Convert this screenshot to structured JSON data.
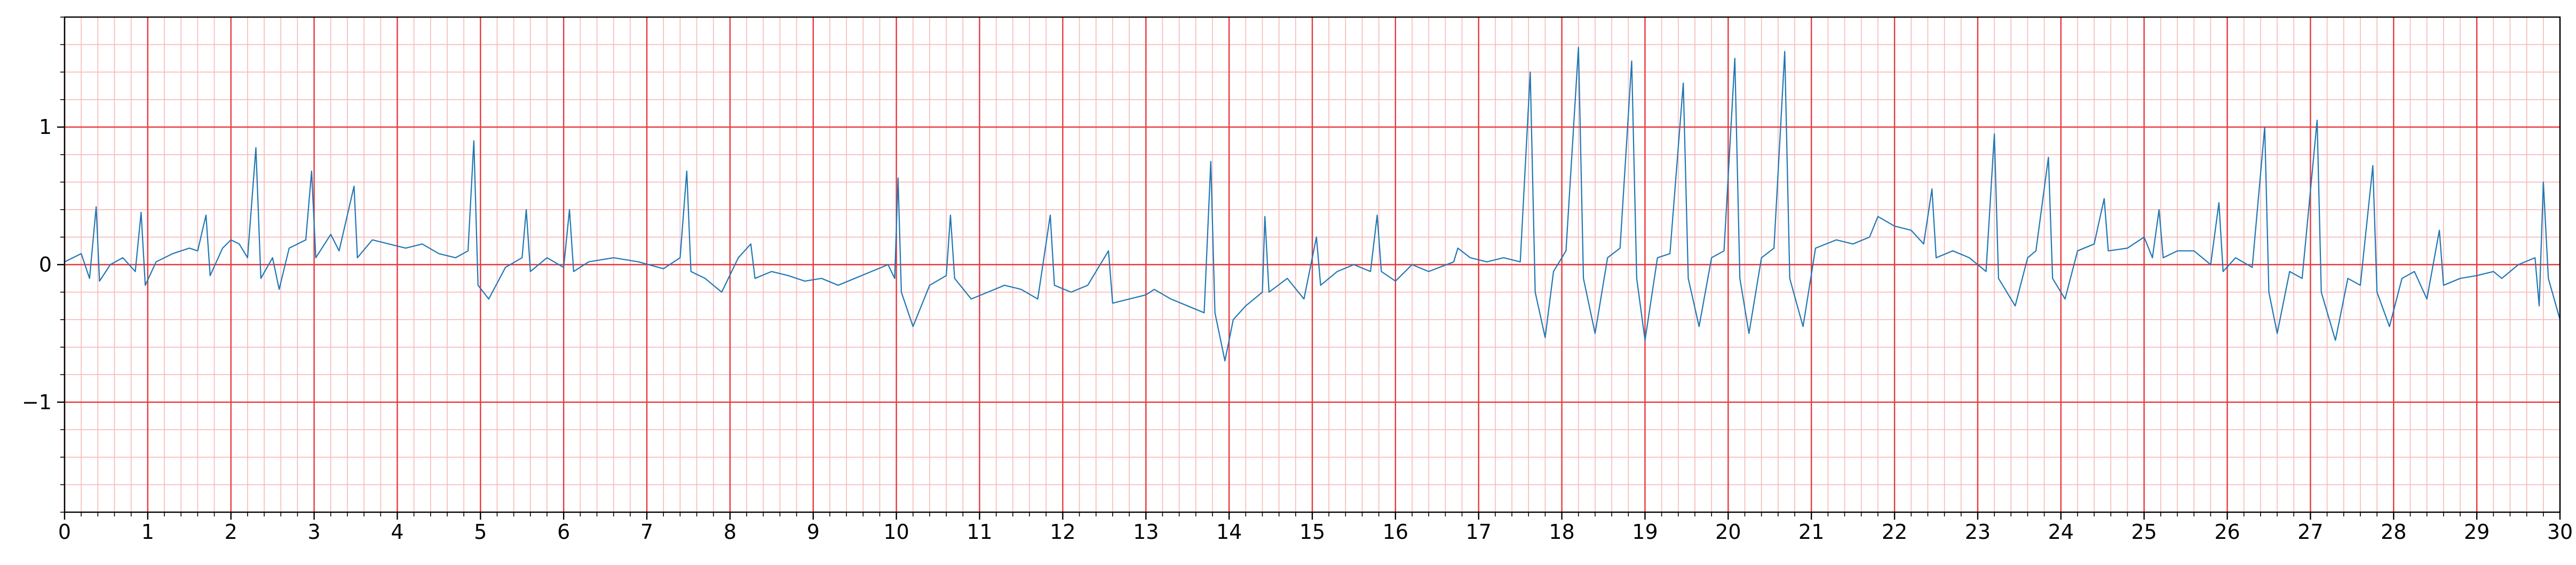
{
  "chart_data": {
    "type": "line",
    "title": "",
    "xlabel": "",
    "ylabel": "",
    "xlim": [
      0,
      30
    ],
    "ylim": [
      -1.8,
      1.8
    ],
    "x_ticks": [
      0,
      1,
      2,
      3,
      4,
      5,
      6,
      7,
      8,
      9,
      10,
      11,
      12,
      13,
      14,
      15,
      16,
      17,
      18,
      19,
      20,
      21,
      22,
      23,
      24,
      25,
      26,
      27,
      28,
      29,
      30
    ],
    "x_tick_labels": [
      "0",
      "1",
      "2",
      "3",
      "4",
      "5",
      "6",
      "7",
      "8",
      "9",
      "10",
      "11",
      "12",
      "13",
      "14",
      "15",
      "16",
      "17",
      "18",
      "19",
      "20",
      "21",
      "22",
      "23",
      "24",
      "25",
      "26",
      "27",
      "28",
      "29",
      "30"
    ],
    "y_ticks": [
      -1,
      0,
      1
    ],
    "y_tick_labels": [
      "−1",
      "0",
      "1"
    ],
    "grid": {
      "major": {
        "x_step": 1,
        "y_step": 1,
        "color": "#e8383d"
      },
      "minor": {
        "x_step": 0.2,
        "y_step": 0.2,
        "color": "#f7b8b8"
      }
    },
    "series_color": "#1f77b4",
    "series": [
      {
        "points": [
          [
            0.0,
            0.02
          ],
          [
            0.1,
            0.05
          ],
          [
            0.2,
            0.08
          ],
          [
            0.3,
            -0.1
          ],
          [
            0.38,
            0.42
          ],
          [
            0.42,
            -0.12
          ],
          [
            0.55,
            0.0
          ],
          [
            0.7,
            0.05
          ],
          [
            0.85,
            -0.05
          ],
          [
            0.92,
            0.38
          ],
          [
            0.97,
            -0.15
          ],
          [
            1.1,
            0.02
          ],
          [
            1.3,
            0.08
          ],
          [
            1.5,
            0.12
          ],
          [
            1.6,
            0.1
          ],
          [
            1.7,
            0.36
          ],
          [
            1.75,
            -0.08
          ],
          [
            1.9,
            0.12
          ],
          [
            2.0,
            0.18
          ],
          [
            2.1,
            0.15
          ],
          [
            2.2,
            0.05
          ],
          [
            2.3,
            0.85
          ],
          [
            2.36,
            -0.1
          ],
          [
            2.5,
            0.05
          ],
          [
            2.58,
            -0.18
          ],
          [
            2.7,
            0.12
          ],
          [
            2.9,
            0.18
          ],
          [
            2.97,
            0.68
          ],
          [
            3.02,
            0.05
          ],
          [
            3.2,
            0.22
          ],
          [
            3.3,
            0.1
          ],
          [
            3.48,
            0.57
          ],
          [
            3.52,
            0.05
          ],
          [
            3.7,
            0.18
          ],
          [
            3.9,
            0.15
          ],
          [
            4.1,
            0.12
          ],
          [
            4.3,
            0.15
          ],
          [
            4.5,
            0.08
          ],
          [
            4.7,
            0.05
          ],
          [
            4.85,
            0.1
          ],
          [
            4.92,
            0.9
          ],
          [
            4.97,
            -0.15
          ],
          [
            5.1,
            -0.25
          ],
          [
            5.3,
            -0.02
          ],
          [
            5.5,
            0.05
          ],
          [
            5.55,
            0.4
          ],
          [
            5.6,
            -0.05
          ],
          [
            5.8,
            0.05
          ],
          [
            6.0,
            -0.02
          ],
          [
            6.07,
            0.4
          ],
          [
            6.12,
            -0.05
          ],
          [
            6.3,
            0.02
          ],
          [
            6.6,
            0.05
          ],
          [
            6.9,
            0.02
          ],
          [
            7.2,
            -0.03
          ],
          [
            7.4,
            0.05
          ],
          [
            7.48,
            0.68
          ],
          [
            7.53,
            -0.05
          ],
          [
            7.7,
            -0.1
          ],
          [
            7.9,
            -0.2
          ],
          [
            8.1,
            0.05
          ],
          [
            8.25,
            0.15
          ],
          [
            8.3,
            -0.1
          ],
          [
            8.5,
            -0.05
          ],
          [
            8.7,
            -0.08
          ],
          [
            8.9,
            -0.12
          ],
          [
            9.1,
            -0.1
          ],
          [
            9.3,
            -0.15
          ],
          [
            9.5,
            -0.1
          ],
          [
            9.7,
            -0.05
          ],
          [
            9.9,
            0.0
          ],
          [
            9.98,
            -0.1
          ],
          [
            10.02,
            0.63
          ],
          [
            10.06,
            -0.2
          ],
          [
            10.2,
            -0.45
          ],
          [
            10.4,
            -0.15
          ],
          [
            10.6,
            -0.08
          ],
          [
            10.65,
            0.36
          ],
          [
            10.7,
            -0.1
          ],
          [
            10.9,
            -0.25
          ],
          [
            11.1,
            -0.2
          ],
          [
            11.3,
            -0.15
          ],
          [
            11.5,
            -0.18
          ],
          [
            11.7,
            -0.25
          ],
          [
            11.85,
            0.36
          ],
          [
            11.9,
            -0.15
          ],
          [
            12.1,
            -0.2
          ],
          [
            12.3,
            -0.15
          ],
          [
            12.55,
            0.1
          ],
          [
            12.6,
            -0.28
          ],
          [
            12.8,
            -0.25
          ],
          [
            13.0,
            -0.22
          ],
          [
            13.1,
            -0.18
          ],
          [
            13.3,
            -0.25
          ],
          [
            13.5,
            -0.3
          ],
          [
            13.7,
            -0.35
          ],
          [
            13.78,
            0.75
          ],
          [
            13.83,
            -0.35
          ],
          [
            13.95,
            -0.7
          ],
          [
            14.05,
            -0.4
          ],
          [
            14.2,
            -0.3
          ],
          [
            14.4,
            -0.2
          ],
          [
            14.43,
            0.35
          ],
          [
            14.48,
            -0.2
          ],
          [
            14.7,
            -0.1
          ],
          [
            14.9,
            -0.25
          ],
          [
            15.05,
            0.2
          ],
          [
            15.1,
            -0.15
          ],
          [
            15.3,
            -0.05
          ],
          [
            15.5,
            0.0
          ],
          [
            15.7,
            -0.05
          ],
          [
            15.78,
            0.36
          ],
          [
            15.83,
            -0.05
          ],
          [
            16.0,
            -0.12
          ],
          [
            16.2,
            0.0
          ],
          [
            16.4,
            -0.05
          ],
          [
            16.7,
            0.02
          ],
          [
            16.75,
            0.12
          ],
          [
            16.9,
            0.05
          ],
          [
            17.1,
            0.02
          ],
          [
            17.3,
            0.05
          ],
          [
            17.5,
            0.02
          ],
          [
            17.62,
            1.4
          ],
          [
            17.68,
            -0.2
          ],
          [
            17.8,
            -0.53
          ],
          [
            17.9,
            -0.05
          ],
          [
            18.05,
            0.1
          ],
          [
            18.2,
            1.58
          ],
          [
            18.26,
            -0.1
          ],
          [
            18.4,
            -0.5
          ],
          [
            18.55,
            0.05
          ],
          [
            18.7,
            0.12
          ],
          [
            18.84,
            1.48
          ],
          [
            18.9,
            -0.1
          ],
          [
            19.0,
            -0.55
          ],
          [
            19.15,
            0.05
          ],
          [
            19.3,
            0.08
          ],
          [
            19.46,
            1.32
          ],
          [
            19.52,
            -0.1
          ],
          [
            19.65,
            -0.45
          ],
          [
            19.8,
            0.05
          ],
          [
            19.95,
            0.1
          ],
          [
            20.08,
            1.5
          ],
          [
            20.14,
            -0.1
          ],
          [
            20.25,
            -0.5
          ],
          [
            20.4,
            0.05
          ],
          [
            20.55,
            0.12
          ],
          [
            20.68,
            1.55
          ],
          [
            20.74,
            -0.1
          ],
          [
            20.9,
            -0.45
          ],
          [
            21.05,
            0.12
          ],
          [
            21.3,
            0.18
          ],
          [
            21.5,
            0.15
          ],
          [
            21.7,
            0.2
          ],
          [
            21.8,
            0.35
          ],
          [
            22.0,
            0.28
          ],
          [
            22.2,
            0.25
          ],
          [
            22.35,
            0.15
          ],
          [
            22.45,
            0.55
          ],
          [
            22.5,
            0.05
          ],
          [
            22.7,
            0.1
          ],
          [
            22.9,
            0.05
          ],
          [
            23.1,
            -0.05
          ],
          [
            23.2,
            0.95
          ],
          [
            23.25,
            -0.1
          ],
          [
            23.45,
            -0.3
          ],
          [
            23.6,
            0.05
          ],
          [
            23.7,
            0.1
          ],
          [
            23.85,
            0.78
          ],
          [
            23.9,
            -0.1
          ],
          [
            24.05,
            -0.25
          ],
          [
            24.2,
            0.1
          ],
          [
            24.4,
            0.15
          ],
          [
            24.52,
            0.48
          ],
          [
            24.57,
            0.1
          ],
          [
            24.8,
            0.12
          ],
          [
            25.0,
            0.2
          ],
          [
            25.1,
            0.05
          ],
          [
            25.18,
            0.4
          ],
          [
            25.23,
            0.05
          ],
          [
            25.4,
            0.1
          ],
          [
            25.6,
            0.1
          ],
          [
            25.8,
            0.0
          ],
          [
            25.9,
            0.45
          ],
          [
            25.95,
            -0.05
          ],
          [
            26.1,
            0.05
          ],
          [
            26.3,
            -0.02
          ],
          [
            26.45,
            1.0
          ],
          [
            26.5,
            -0.2
          ],
          [
            26.6,
            -0.5
          ],
          [
            26.75,
            -0.05
          ],
          [
            26.9,
            -0.1
          ],
          [
            27.08,
            1.05
          ],
          [
            27.13,
            -0.2
          ],
          [
            27.3,
            -0.55
          ],
          [
            27.45,
            -0.1
          ],
          [
            27.6,
            -0.15
          ],
          [
            27.75,
            0.72
          ],
          [
            27.8,
            -0.2
          ],
          [
            27.95,
            -0.45
          ],
          [
            28.1,
            -0.1
          ],
          [
            28.25,
            -0.05
          ],
          [
            28.4,
            -0.25
          ],
          [
            28.55,
            0.25
          ],
          [
            28.6,
            -0.15
          ],
          [
            28.8,
            -0.1
          ],
          [
            29.0,
            -0.08
          ],
          [
            29.2,
            -0.05
          ],
          [
            29.3,
            -0.1
          ],
          [
            29.5,
            0.0
          ],
          [
            29.7,
            0.05
          ],
          [
            29.75,
            -0.3
          ],
          [
            29.8,
            0.6
          ],
          [
            29.86,
            -0.1
          ],
          [
            30.0,
            -0.4
          ]
        ]
      }
    ]
  }
}
